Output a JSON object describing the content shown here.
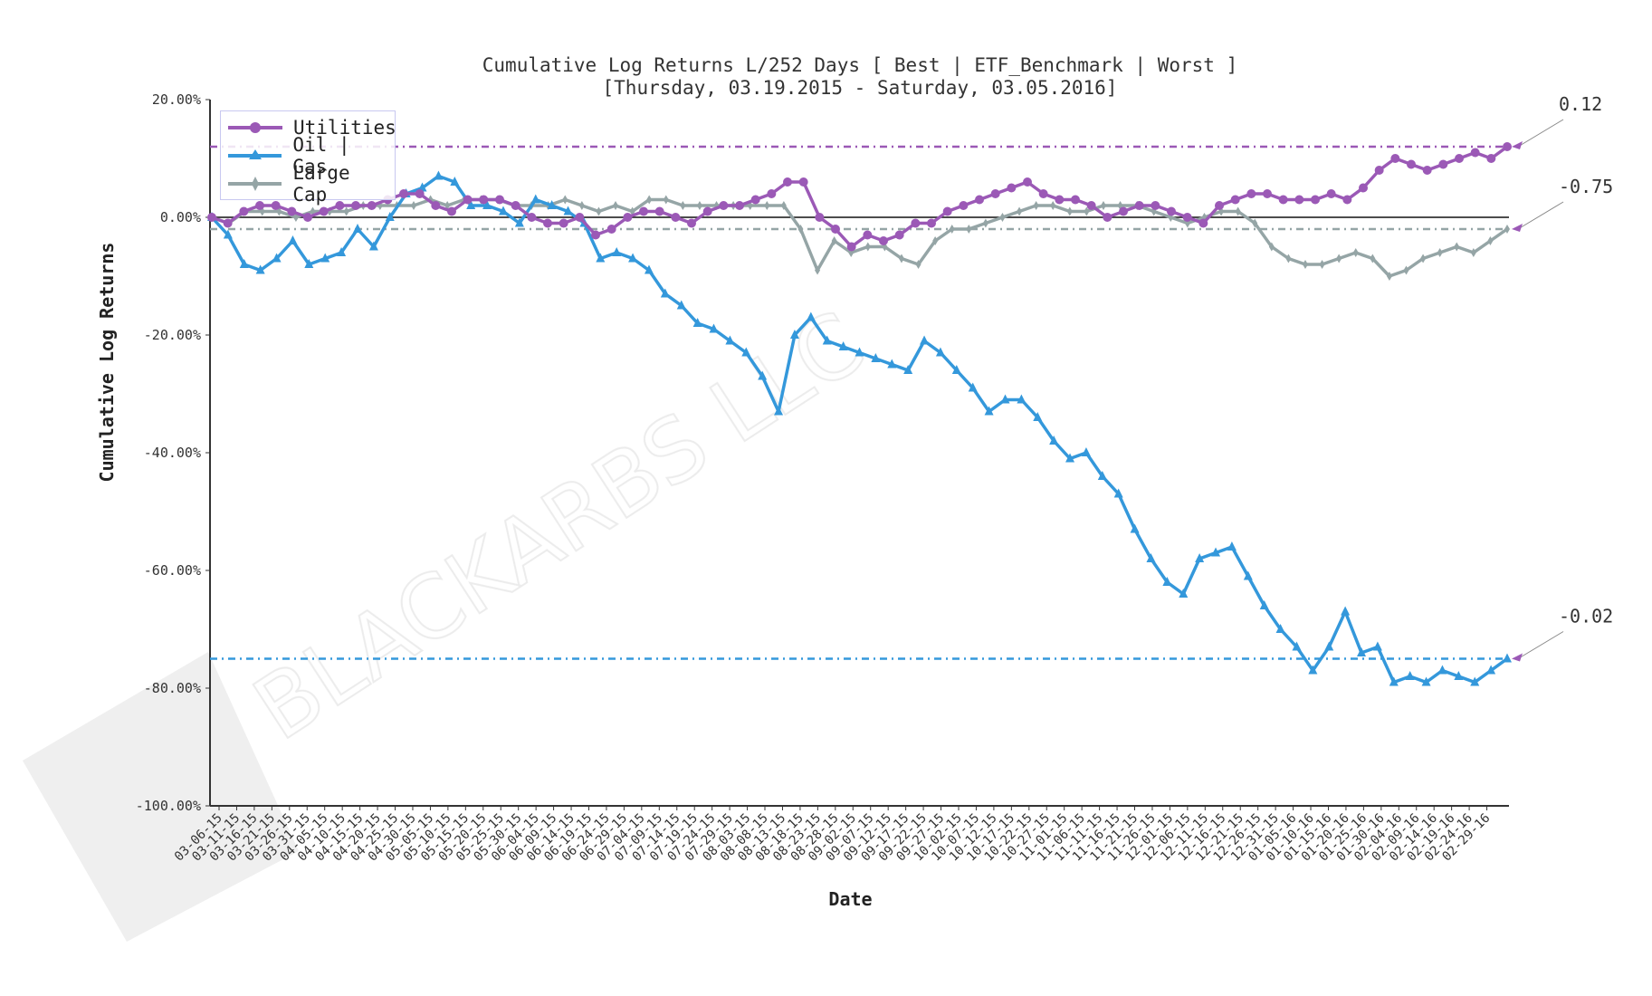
{
  "chart_data": {
    "type": "line",
    "title": "Cumulative Log Returns L/252 Days [ Best | ETF_Benchmark | Worst ]",
    "subtitle": "[Thursday, 03.19.2015 - Saturday, 03.05.2016]",
    "xlabel": "Date",
    "ylabel": "Cumulative Log Returns",
    "ylim": [
      -1.0,
      0.2
    ],
    "yticks": [
      "20.00%",
      "0.00%",
      "-20.00%",
      "-40.00%",
      "-60.00%",
      "-80.00%",
      "-100.00%"
    ],
    "ytick_values": [
      0.2,
      0.0,
      -0.2,
      -0.4,
      -0.6,
      -0.8,
      -1.0
    ],
    "grid": false,
    "legend_position": "upper left",
    "xticks": [
      "03-06-15",
      "03-11-15",
      "03-16-15",
      "03-21-15",
      "03-26-15",
      "03-31-15",
      "04-05-15",
      "04-10-15",
      "04-15-15",
      "04-20-15",
      "04-25-15",
      "04-30-15",
      "05-05-15",
      "05-10-15",
      "05-15-15",
      "05-20-15",
      "05-25-15",
      "05-30-15",
      "06-04-15",
      "06-09-15",
      "06-14-15",
      "06-19-15",
      "06-24-15",
      "06-29-15",
      "07-04-15",
      "07-09-15",
      "07-14-15",
      "07-19-15",
      "07-24-15",
      "07-29-15",
      "08-03-15",
      "08-08-15",
      "08-13-15",
      "08-18-15",
      "08-23-15",
      "08-28-15",
      "09-02-15",
      "09-07-15",
      "09-12-15",
      "09-17-15",
      "09-22-15",
      "09-27-15",
      "10-02-15",
      "10-07-15",
      "10-12-15",
      "10-17-15",
      "10-22-15",
      "10-27-15",
      "11-01-15",
      "11-06-15",
      "11-11-15",
      "11-16-15",
      "11-21-15",
      "11-26-15",
      "12-01-15",
      "12-06-15",
      "12-11-15",
      "12-16-15",
      "12-21-15",
      "12-26-15",
      "12-31-15",
      "01-05-16",
      "01-10-16",
      "01-15-16",
      "01-20-16",
      "01-25-16",
      "01-30-16",
      "02-04-16",
      "02-09-16",
      "02-14-16",
      "02-19-16",
      "02-24-16",
      "02-29-16"
    ],
    "series": [
      {
        "name": "Utilities",
        "color": "#9b59b6",
        "marker": "circle",
        "final_value": 0.12,
        "values": [
          0.0,
          -0.01,
          0.01,
          0.02,
          0.02,
          0.01,
          0.0,
          0.01,
          0.02,
          0.02,
          0.02,
          0.03,
          0.04,
          0.04,
          0.02,
          0.01,
          0.03,
          0.03,
          0.03,
          0.02,
          0.0,
          -0.01,
          -0.01,
          0.0,
          -0.03,
          -0.02,
          0.0,
          0.01,
          0.01,
          0.0,
          -0.01,
          0.01,
          0.02,
          0.02,
          0.03,
          0.04,
          0.06,
          0.06,
          0.0,
          -0.02,
          -0.05,
          -0.03,
          -0.04,
          -0.03,
          -0.01,
          -0.01,
          0.01,
          0.02,
          0.03,
          0.04,
          0.05,
          0.06,
          0.04,
          0.03,
          0.03,
          0.02,
          0.0,
          0.01,
          0.02,
          0.02,
          0.01,
          0.0,
          -0.01,
          0.02,
          0.03,
          0.04,
          0.04,
          0.03,
          0.03,
          0.03,
          0.04,
          0.03,
          0.05,
          0.08,
          0.1,
          0.09,
          0.08,
          0.09,
          0.1,
          0.11,
          0.1,
          0.12
        ]
      },
      {
        "name": "Oil | Gas",
        "color": "#3498db",
        "marker": "triangle",
        "final_value": -0.75,
        "values": [
          0.0,
          -0.03,
          -0.08,
          -0.09,
          -0.07,
          -0.04,
          -0.08,
          -0.07,
          -0.06,
          -0.02,
          -0.05,
          0.0,
          0.04,
          0.05,
          0.07,
          0.06,
          0.02,
          0.02,
          0.01,
          -0.01,
          0.03,
          0.02,
          0.01,
          -0.01,
          -0.07,
          -0.06,
          -0.07,
          -0.09,
          -0.13,
          -0.15,
          -0.18,
          -0.19,
          -0.21,
          -0.23,
          -0.27,
          -0.33,
          -0.2,
          -0.17,
          -0.21,
          -0.22,
          -0.23,
          -0.24,
          -0.25,
          -0.26,
          -0.21,
          -0.23,
          -0.26,
          -0.29,
          -0.33,
          -0.31,
          -0.31,
          -0.34,
          -0.38,
          -0.41,
          -0.4,
          -0.44,
          -0.47,
          -0.53,
          -0.58,
          -0.62,
          -0.64,
          -0.58,
          -0.57,
          -0.56,
          -0.61,
          -0.66,
          -0.7,
          -0.73,
          -0.77,
          -0.73,
          -0.67,
          -0.74,
          -0.73,
          -0.79,
          -0.78,
          -0.79,
          -0.77,
          -0.78,
          -0.79,
          -0.77,
          -0.75
        ]
      },
      {
        "name": "Large Cap",
        "color": "#95a5a6",
        "marker": "diamond",
        "final_value": -0.02,
        "values": [
          0.0,
          -0.01,
          0.01,
          0.01,
          0.01,
          0.0,
          0.01,
          0.01,
          0.01,
          0.02,
          0.02,
          0.02,
          0.02,
          0.03,
          0.02,
          0.03,
          0.03,
          0.03,
          0.02,
          0.02,
          0.02,
          0.03,
          0.02,
          0.01,
          0.02,
          0.01,
          0.03,
          0.03,
          0.02,
          0.02,
          0.02,
          0.02,
          0.02,
          0.02,
          0.02,
          -0.02,
          -0.09,
          -0.04,
          -0.06,
          -0.05,
          -0.05,
          -0.07,
          -0.08,
          -0.04,
          -0.02,
          -0.02,
          -0.01,
          0.0,
          0.01,
          0.02,
          0.02,
          0.01,
          0.01,
          0.02,
          0.02,
          0.02,
          0.01,
          0.0,
          -0.01,
          0.0,
          0.01,
          0.01,
          -0.01,
          -0.05,
          -0.07,
          -0.08,
          -0.08,
          -0.07,
          -0.06,
          -0.07,
          -0.1,
          -0.09,
          -0.07,
          -0.06,
          -0.05,
          -0.06,
          -0.04,
          -0.02
        ]
      }
    ],
    "reference_lines": [
      {
        "series": "Utilities",
        "value": 0.12,
        "style": "dash-dot"
      },
      {
        "series": "Large Cap",
        "value": -0.02,
        "style": "dash-dot"
      },
      {
        "series": "Oil | Gas",
        "value": -0.75,
        "style": "dash-dot"
      },
      {
        "series": "zero",
        "value": 0.0,
        "style": "solid"
      }
    ],
    "annotations": [
      "0.12",
      "-0.02",
      "-0.75"
    ]
  },
  "watermark": {
    "text": "BLACKARBS LLC"
  },
  "legend": {
    "items": [
      {
        "label": "Utilities"
      },
      {
        "label": "Oil | Gas"
      },
      {
        "label": "Large Cap"
      }
    ]
  }
}
